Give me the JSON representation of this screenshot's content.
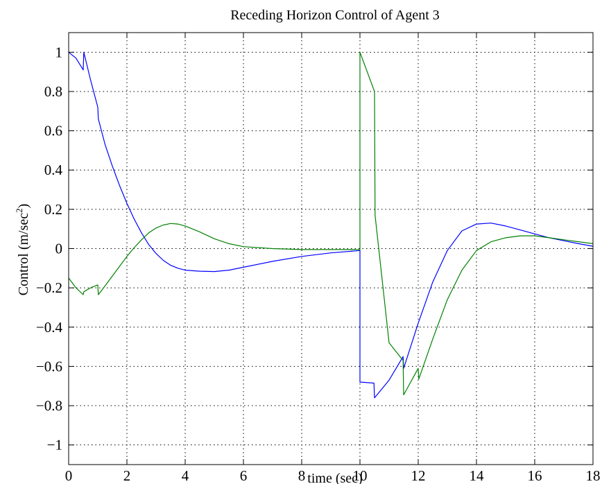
{
  "chart_data": {
    "type": "line",
    "title": "Receding Horizon Control of Agent 3",
    "xlabel": "time (sec)",
    "ylabel": {
      "text": "Control (m/sec",
      "superscript": "2",
      "suffix": ")"
    },
    "xlim": [
      0,
      18
    ],
    "ylim": [
      -1.1,
      1.1
    ],
    "grid": true,
    "legend": "none",
    "xticks": [
      0,
      2,
      4,
      6,
      8,
      10,
      12,
      14,
      16,
      18
    ],
    "xtick_labels": [
      "0",
      "2",
      "4",
      "6",
      "8",
      "10",
      "12",
      "14",
      "16",
      "18"
    ],
    "yticks": [
      1,
      0.8,
      0.6,
      0.4,
      0.2,
      0,
      -0.2,
      -0.4,
      -0.6,
      -0.8,
      -1
    ],
    "ytick_labels": [
      "1",
      "0.8",
      "0.6",
      "0.4",
      "0.2",
      "0",
      "−0.2",
      "−0.4",
      "−0.6",
      "−0.8",
      "−1"
    ],
    "series": [
      {
        "color": "#0000ff",
        "x": [
          0,
          0.25,
          0.5,
          0.52,
          0.75,
          1.0,
          1.02,
          1.25,
          1.5,
          1.75,
          2.0,
          2.25,
          2.5,
          2.75,
          3.0,
          3.25,
          3.5,
          3.75,
          4.0,
          4.5,
          5.0,
          5.5,
          6.0,
          7.0,
          8.0,
          9.0,
          10.0,
          10.0,
          10.05,
          10.48,
          10.5,
          11.0,
          11.48,
          11.5,
          12.0,
          12.5,
          13.0,
          13.5,
          14.0,
          14.5,
          15.0,
          15.5,
          16.0,
          16.5,
          17.0,
          17.5,
          18.0
        ],
        "y": [
          1.0,
          0.97,
          0.91,
          1.0,
          0.86,
          0.72,
          0.66,
          0.53,
          0.42,
          0.32,
          0.23,
          0.15,
          0.08,
          0.02,
          -0.025,
          -0.06,
          -0.085,
          -0.1,
          -0.11,
          -0.115,
          -0.117,
          -0.11,
          -0.095,
          -0.065,
          -0.04,
          -0.022,
          -0.01,
          -0.68,
          -0.68,
          -0.685,
          -0.76,
          -0.67,
          -0.55,
          -0.61,
          -0.38,
          -0.17,
          -0.01,
          0.09,
          0.125,
          0.13,
          0.115,
          0.095,
          0.075,
          0.055,
          0.04,
          0.025,
          0.012
        ]
      },
      {
        "color": "#008000",
        "x": [
          0,
          0.25,
          0.5,
          0.52,
          0.75,
          1.0,
          1.02,
          1.25,
          1.5,
          1.75,
          2.0,
          2.25,
          2.5,
          2.75,
          3.0,
          3.25,
          3.5,
          3.75,
          4.0,
          4.5,
          5.0,
          5.5,
          6.0,
          7.0,
          8.0,
          9.0,
          10.0,
          10.0,
          10.5,
          10.52,
          11.0,
          11.48,
          11.5,
          12.0,
          12.02,
          12.5,
          13.0,
          13.5,
          14.0,
          14.5,
          15.0,
          15.5,
          16.0,
          16.5,
          17.0,
          17.5,
          18.0
        ],
        "y": [
          -0.15,
          -0.2,
          -0.235,
          -0.22,
          -0.2,
          -0.185,
          -0.235,
          -0.19,
          -0.14,
          -0.09,
          -0.04,
          0.005,
          0.045,
          0.08,
          0.105,
          0.12,
          0.128,
          0.125,
          0.115,
          0.085,
          0.05,
          0.025,
          0.01,
          0.0,
          -0.005,
          -0.005,
          -0.005,
          1.0,
          0.8,
          0.17,
          -0.48,
          -0.57,
          -0.745,
          -0.61,
          -0.665,
          -0.46,
          -0.26,
          -0.11,
          -0.01,
          0.035,
          0.055,
          0.065,
          0.065,
          0.055,
          0.045,
          0.035,
          0.025
        ]
      }
    ]
  }
}
